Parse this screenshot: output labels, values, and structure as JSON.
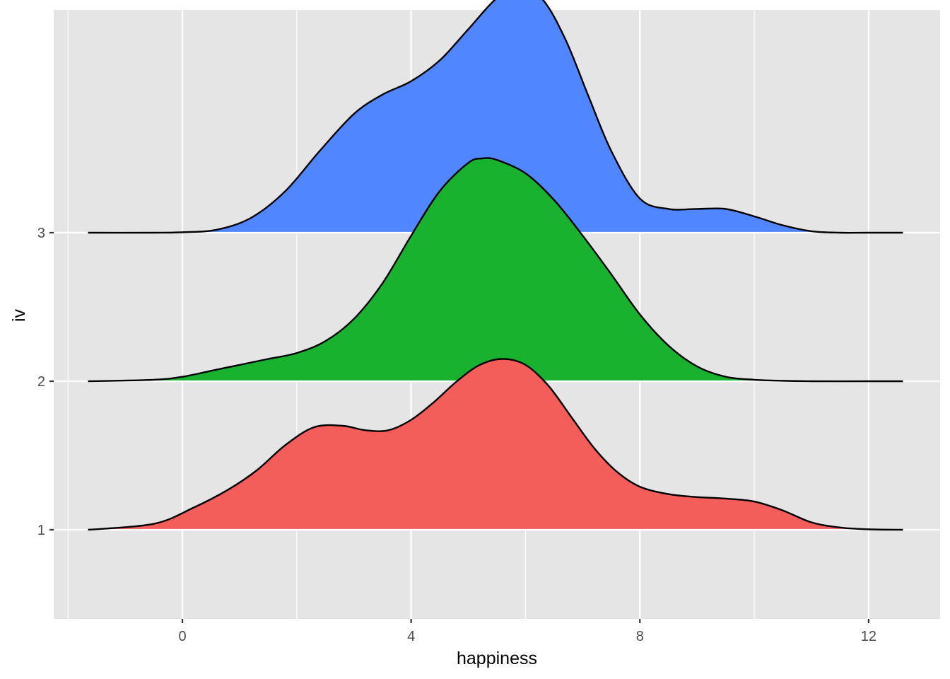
{
  "chart_data": {
    "type": "area",
    "subtype": "ridgeline",
    "xlabel": "happiness",
    "ylabel": "iv",
    "xlim": [
      -2.25,
      13.25
    ],
    "ylim": [
      0.4,
      4.5
    ],
    "x_ticks": [
      {
        "value": 0,
        "label": "0"
      },
      {
        "value": 4,
        "label": "4"
      },
      {
        "value": 8,
        "label": "8"
      },
      {
        "value": 12,
        "label": "12"
      }
    ],
    "x_minor_ticks": [
      -2,
      2,
      6,
      10
    ],
    "y_ticks": [
      {
        "value": 1,
        "label": "1"
      },
      {
        "value": 2,
        "label": "2"
      },
      {
        "value": 3,
        "label": "3"
      }
    ],
    "grid": true,
    "legend": "none",
    "panel_background": "#e5e5e5",
    "grid_color": "#ffffff",
    "outline_color": "#000000",
    "series": [
      {
        "baseline": 1,
        "color": "#f35e5a",
        "x": [
          -1.65,
          -0.5,
          0.2,
          0.8,
          1.3,
          1.8,
          2.3,
          2.8,
          3.2,
          3.6,
          4.0,
          4.4,
          4.8,
          5.2,
          5.6,
          6.0,
          6.4,
          6.8,
          7.2,
          7.6,
          8.0,
          8.5,
          9.0,
          9.5,
          10.0,
          10.5,
          11.0,
          11.5,
          12.0,
          12.6
        ],
        "y": [
          1.0,
          1.04,
          1.15,
          1.27,
          1.4,
          1.57,
          1.69,
          1.7,
          1.67,
          1.67,
          1.74,
          1.86,
          2.0,
          2.11,
          2.15,
          2.11,
          1.97,
          1.76,
          1.55,
          1.39,
          1.29,
          1.24,
          1.22,
          1.21,
          1.19,
          1.13,
          1.05,
          1.015,
          1.003,
          1.0
        ]
      },
      {
        "baseline": 2,
        "color": "#19b22e",
        "x": [
          -1.65,
          -0.5,
          0.0,
          0.5,
          1.0,
          1.5,
          2.0,
          2.5,
          3.0,
          3.5,
          4.0,
          4.5,
          5.0,
          5.25,
          5.5,
          6.0,
          6.5,
          7.0,
          7.5,
          8.0,
          8.5,
          9.0,
          9.5,
          10.0,
          10.5,
          11.0,
          12.0,
          12.6
        ],
        "y": [
          2.0,
          2.01,
          2.03,
          2.07,
          2.11,
          2.15,
          2.19,
          2.27,
          2.42,
          2.66,
          2.98,
          3.28,
          3.47,
          3.5,
          3.49,
          3.4,
          3.22,
          2.98,
          2.72,
          2.45,
          2.24,
          2.1,
          2.03,
          2.01,
          2.003,
          2.0,
          2.0,
          2.0
        ]
      },
      {
        "baseline": 3,
        "color": "#5086ff",
        "x": [
          -1.65,
          -0.5,
          0.0,
          0.6,
          1.2,
          1.8,
          2.4,
          3.0,
          3.5,
          4.0,
          4.5,
          5.0,
          5.5,
          5.9,
          6.3,
          6.7,
          7.1,
          7.5,
          8.0,
          8.5,
          9.0,
          9.5,
          10.0,
          10.5,
          11.0,
          11.5,
          12.0,
          12.6
        ],
        "y": [
          3.0,
          3.0,
          3.003,
          3.02,
          3.1,
          3.28,
          3.55,
          3.8,
          3.93,
          4.02,
          4.16,
          4.37,
          4.58,
          4.65,
          4.57,
          4.3,
          3.92,
          3.55,
          3.23,
          3.16,
          3.16,
          3.16,
          3.11,
          3.05,
          3.01,
          3.0,
          3.0,
          3.0
        ]
      }
    ]
  }
}
